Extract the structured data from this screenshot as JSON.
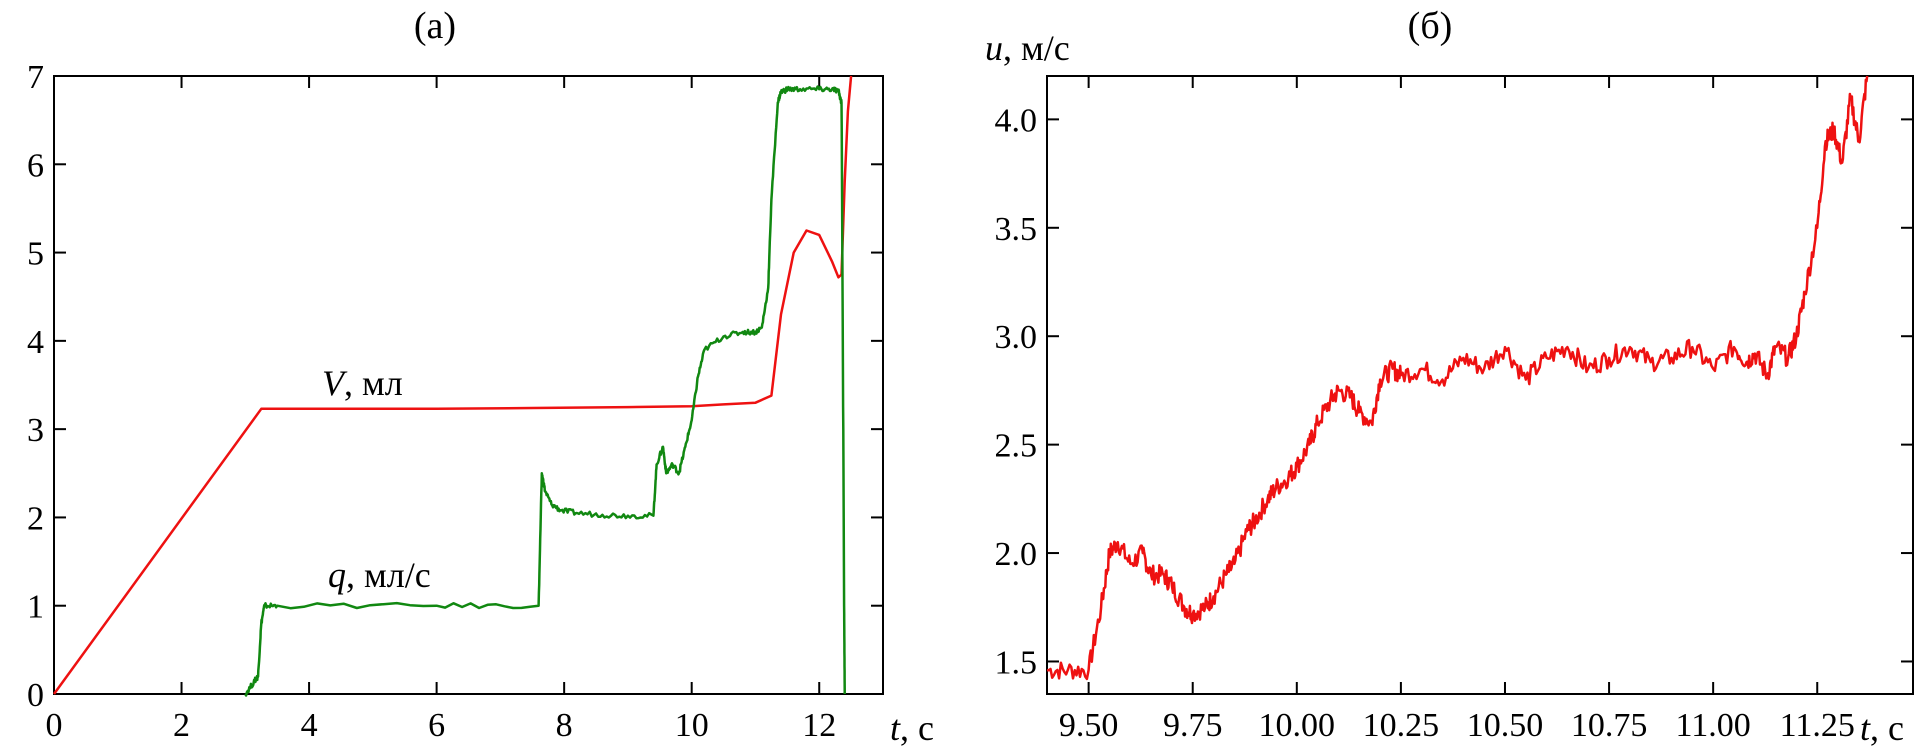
{
  "chart_data": [
    {
      "panel": "(а)",
      "type": "line",
      "xlabel_var": "t",
      "xlabel_unit": ", с",
      "xlim": [
        0,
        13
      ],
      "ylim": [
        0,
        7
      ],
      "xticks": [
        0,
        2,
        4,
        6,
        8,
        10,
        12
      ],
      "yticks": [
        0,
        1,
        2,
        3,
        4,
        5,
        6,
        7
      ],
      "series": [
        {
          "name_var": "V",
          "name_unit": ", мл",
          "color": "#ee1111",
          "x": [
            0,
            3.25,
            4,
            6,
            7.5,
            9,
            10,
            10.5,
            11,
            11.25,
            11.4,
            11.6,
            11.8,
            12,
            12.2,
            12.3,
            12.35,
            12.4,
            12.45,
            12.5
          ],
          "y": [
            0,
            3.23,
            3.23,
            3.23,
            3.24,
            3.25,
            3.26,
            3.28,
            3.3,
            3.38,
            4.3,
            5.0,
            5.25,
            5.2,
            4.9,
            4.72,
            4.75,
            5.8,
            6.6,
            7.0
          ]
        },
        {
          "name_var": "q",
          "name_unit": ", мл/с",
          "color": "#118811",
          "x": [
            3.0,
            3.15,
            3.2,
            3.25,
            3.3,
            3.5,
            6,
            7.6,
            7.65,
            7.7,
            7.8,
            7.95,
            8.2,
            8.6,
            9,
            9.4,
            9.45,
            9.55,
            9.6,
            9.7,
            9.8,
            9.9,
            10.0,
            10.1,
            10.2,
            10.5,
            10.8,
            11.0,
            11.1,
            11.2,
            11.25,
            11.35,
            11.4,
            11.5,
            11.7,
            12.0,
            12.2,
            12.3,
            12.35,
            12.37,
            12.39,
            12.4
          ],
          "y": [
            0,
            0.15,
            0.2,
            0.8,
            1.0,
            1.0,
            1.0,
            1.0,
            2.5,
            2.3,
            2.15,
            2.08,
            2.05,
            2.03,
            2.02,
            2.02,
            2.6,
            2.8,
            2.5,
            2.6,
            2.5,
            2.8,
            3.1,
            3.6,
            3.9,
            4.05,
            4.1,
            4.1,
            4.15,
            4.6,
            5.6,
            6.7,
            6.82,
            6.85,
            6.85,
            6.85,
            6.85,
            6.83,
            6.7,
            4.0,
            1.0,
            0.0
          ]
        }
      ]
    },
    {
      "panel": "(б)",
      "type": "line",
      "ylabel_var": "u",
      "ylabel_unit": ", м/с",
      "xlabel_var": "t",
      "xlabel_unit": ", с",
      "xlim": [
        9.4,
        11.48
      ],
      "ylim": [
        1.35,
        4.2
      ],
      "xticks": [
        9.5,
        9.75,
        10.0,
        10.25,
        10.5,
        10.75,
        11.0,
        11.25
      ],
      "xtick_labels": [
        "9.50",
        "9.75",
        "10.00",
        "10.25",
        "10.50",
        "10.75",
        "11.00",
        "11.25"
      ],
      "yticks": [
        1.5,
        2.0,
        2.5,
        3.0,
        3.5,
        4.0
      ],
      "ytick_labels": [
        "1.5",
        "2.0",
        "2.5",
        "3.0",
        "3.5",
        "4.0"
      ],
      "series": [
        {
          "color": "#ee1111",
          "x": [
            9.4,
            9.45,
            9.5,
            9.53,
            9.55,
            9.57,
            9.6,
            9.63,
            9.65,
            9.68,
            9.7,
            9.73,
            9.75,
            9.78,
            9.8,
            9.83,
            9.85,
            9.88,
            9.9,
            9.93,
            9.95,
            9.98,
            10.0,
            10.03,
            10.05,
            10.08,
            10.1,
            10.13,
            10.15,
            10.18,
            10.2,
            10.23,
            10.25,
            10.3,
            10.35,
            10.4,
            10.45,
            10.5,
            10.55,
            10.6,
            10.65,
            10.7,
            10.75,
            10.8,
            10.85,
            10.9,
            10.95,
            11.0,
            11.05,
            11.08,
            11.1,
            11.13,
            11.15,
            11.18,
            11.2,
            11.22,
            11.25,
            11.27,
            11.29,
            11.31,
            11.33,
            11.35,
            11.37
          ],
          "y": [
            1.46,
            1.46,
            1.46,
            1.75,
            2.0,
            2.05,
            1.95,
            2.0,
            1.9,
            1.9,
            1.85,
            1.75,
            1.72,
            1.75,
            1.8,
            1.9,
            1.95,
            2.1,
            2.15,
            2.25,
            2.3,
            2.35,
            2.4,
            2.5,
            2.6,
            2.7,
            2.75,
            2.72,
            2.65,
            2.6,
            2.8,
            2.85,
            2.82,
            2.85,
            2.8,
            2.9,
            2.85,
            2.95,
            2.8,
            2.9,
            2.95,
            2.85,
            2.9,
            2.95,
            2.88,
            2.9,
            2.95,
            2.85,
            2.95,
            2.88,
            2.92,
            2.82,
            2.95,
            2.9,
            3.0,
            3.2,
            3.5,
            3.9,
            3.95,
            3.8,
            4.1,
            3.9,
            4.2
          ]
        }
      ]
    }
  ]
}
